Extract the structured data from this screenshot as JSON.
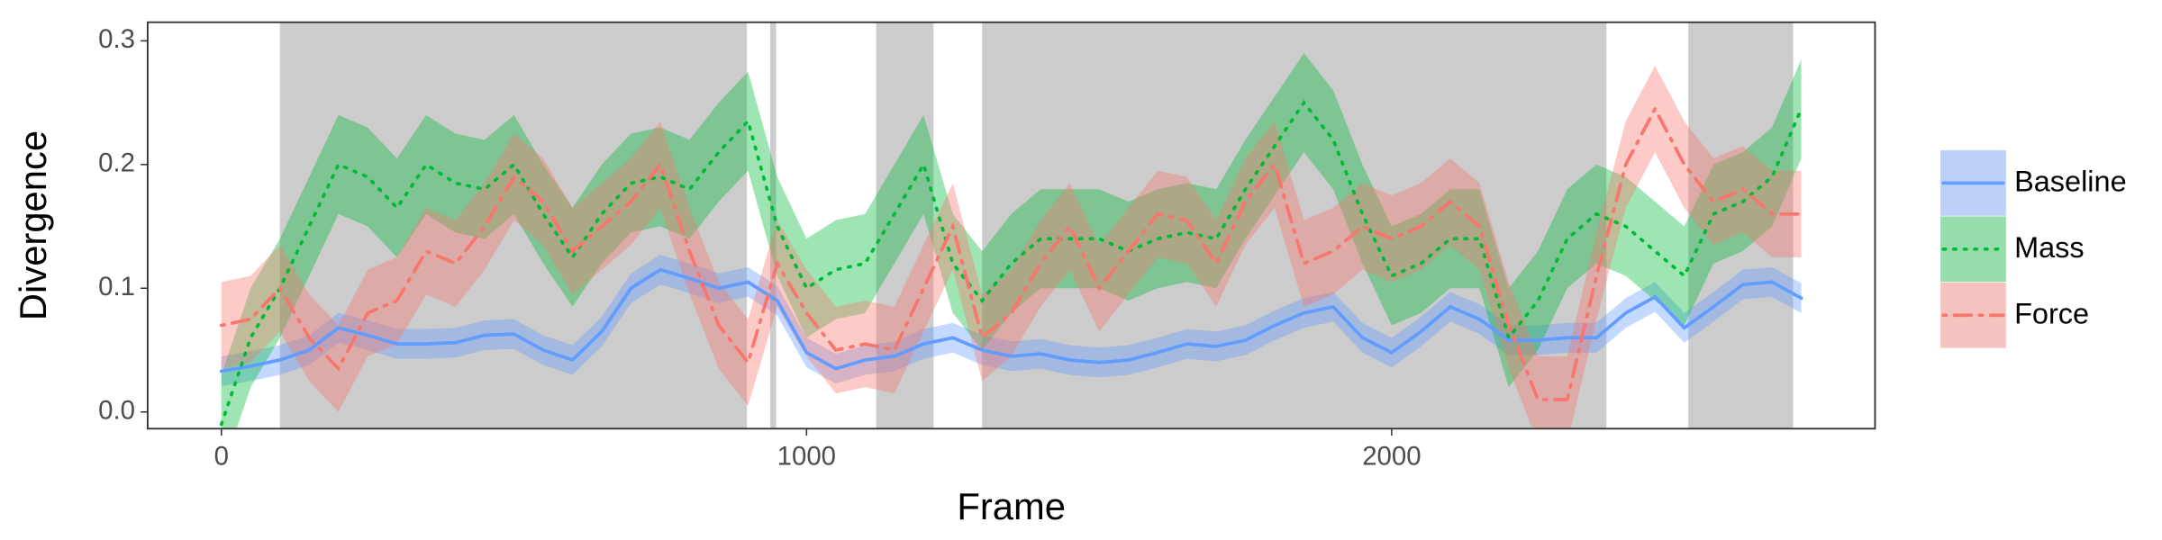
{
  "chart_data": {
    "type": "line",
    "x_label": "Frame",
    "y_label": "Divergence",
    "xlim": [
      -126,
      2826
    ],
    "ylim": [
      -0.0135,
      0.315
    ],
    "xticks": [
      0,
      1000,
      2000
    ],
    "yticks": [
      {
        "value": 0,
        "label": "0.0"
      },
      0.1,
      0.2,
      0.3
    ],
    "shaded_regions": [
      [
        100,
        898
      ],
      [
        938,
        948
      ],
      [
        1119,
        1217
      ],
      [
        1300,
        2367
      ],
      [
        2507,
        2686
      ]
    ],
    "shade_color": "#cccccc",
    "legend_position": "right",
    "x": [
      0,
      50,
      100,
      150,
      200,
      250,
      300,
      350,
      400,
      450,
      500,
      550,
      600,
      650,
      700,
      750,
      800,
      850,
      900,
      950,
      1000,
      1050,
      1100,
      1150,
      1200,
      1250,
      1300,
      1350,
      1400,
      1450,
      1500,
      1550,
      1600,
      1650,
      1700,
      1750,
      1800,
      1850,
      1900,
      1950,
      2000,
      2050,
      2100,
      2150,
      2200,
      2250,
      2300,
      2350,
      2400,
      2450,
      2500,
      2550,
      2600,
      2650,
      2700
    ],
    "series": [
      {
        "name": "Baseline",
        "color": "#619CFF",
        "dash": "solid",
        "error": 0.012,
        "values": [
          0.033,
          0.037,
          0.042,
          0.05,
          0.068,
          0.062,
          0.055,
          0.055,
          0.056,
          0.062,
          0.063,
          0.05,
          0.042,
          0.065,
          0.1,
          0.115,
          0.108,
          0.1,
          0.105,
          0.09,
          0.048,
          0.035,
          0.042,
          0.045,
          0.055,
          0.06,
          0.05,
          0.045,
          0.047,
          0.042,
          0.04,
          0.042,
          0.048,
          0.055,
          0.053,
          0.058,
          0.07,
          0.08,
          0.085,
          0.06,
          0.048,
          0.065,
          0.085,
          0.075,
          0.058,
          0.058,
          0.06,
          0.06,
          0.08,
          0.093,
          0.068,
          0.085,
          0.103,
          0.105,
          0.092
        ]
      },
      {
        "name": "Mass",
        "color": "#00BA38",
        "dash": "dotted",
        "error": 0.04,
        "values": [
          -0.01,
          0.06,
          0.1,
          0.15,
          0.2,
          0.19,
          0.165,
          0.2,
          0.185,
          0.18,
          0.2,
          0.16,
          0.125,
          0.16,
          0.185,
          0.19,
          0.18,
          0.21,
          0.235,
          0.15,
          0.1,
          0.115,
          0.12,
          0.16,
          0.2,
          0.12,
          0.09,
          0.12,
          0.14,
          0.14,
          0.14,
          0.13,
          0.14,
          0.145,
          0.14,
          0.18,
          0.215,
          0.25,
          0.22,
          0.16,
          0.11,
          0.12,
          0.14,
          0.14,
          0.06,
          0.09,
          0.14,
          0.16,
          0.15,
          0.13,
          0.11,
          0.16,
          0.17,
          0.19,
          0.245
        ]
      },
      {
        "name": "Force",
        "color": "#F8766D",
        "dash": "dotdash",
        "error": 0.035,
        "values": [
          0.07,
          0.075,
          0.1,
          0.06,
          0.035,
          0.08,
          0.09,
          0.13,
          0.12,
          0.15,
          0.19,
          0.17,
          0.13,
          0.15,
          0.17,
          0.2,
          0.13,
          0.07,
          0.04,
          0.12,
          0.08,
          0.05,
          0.055,
          0.05,
          0.1,
          0.15,
          0.06,
          0.08,
          0.12,
          0.15,
          0.1,
          0.13,
          0.16,
          0.155,
          0.12,
          0.17,
          0.2,
          0.12,
          0.13,
          0.15,
          0.14,
          0.15,
          0.17,
          0.15,
          0.07,
          0.01,
          0.01,
          0.11,
          0.2,
          0.245,
          0.2,
          0.17,
          0.18,
          0.16,
          0.16
        ]
      }
    ]
  }
}
